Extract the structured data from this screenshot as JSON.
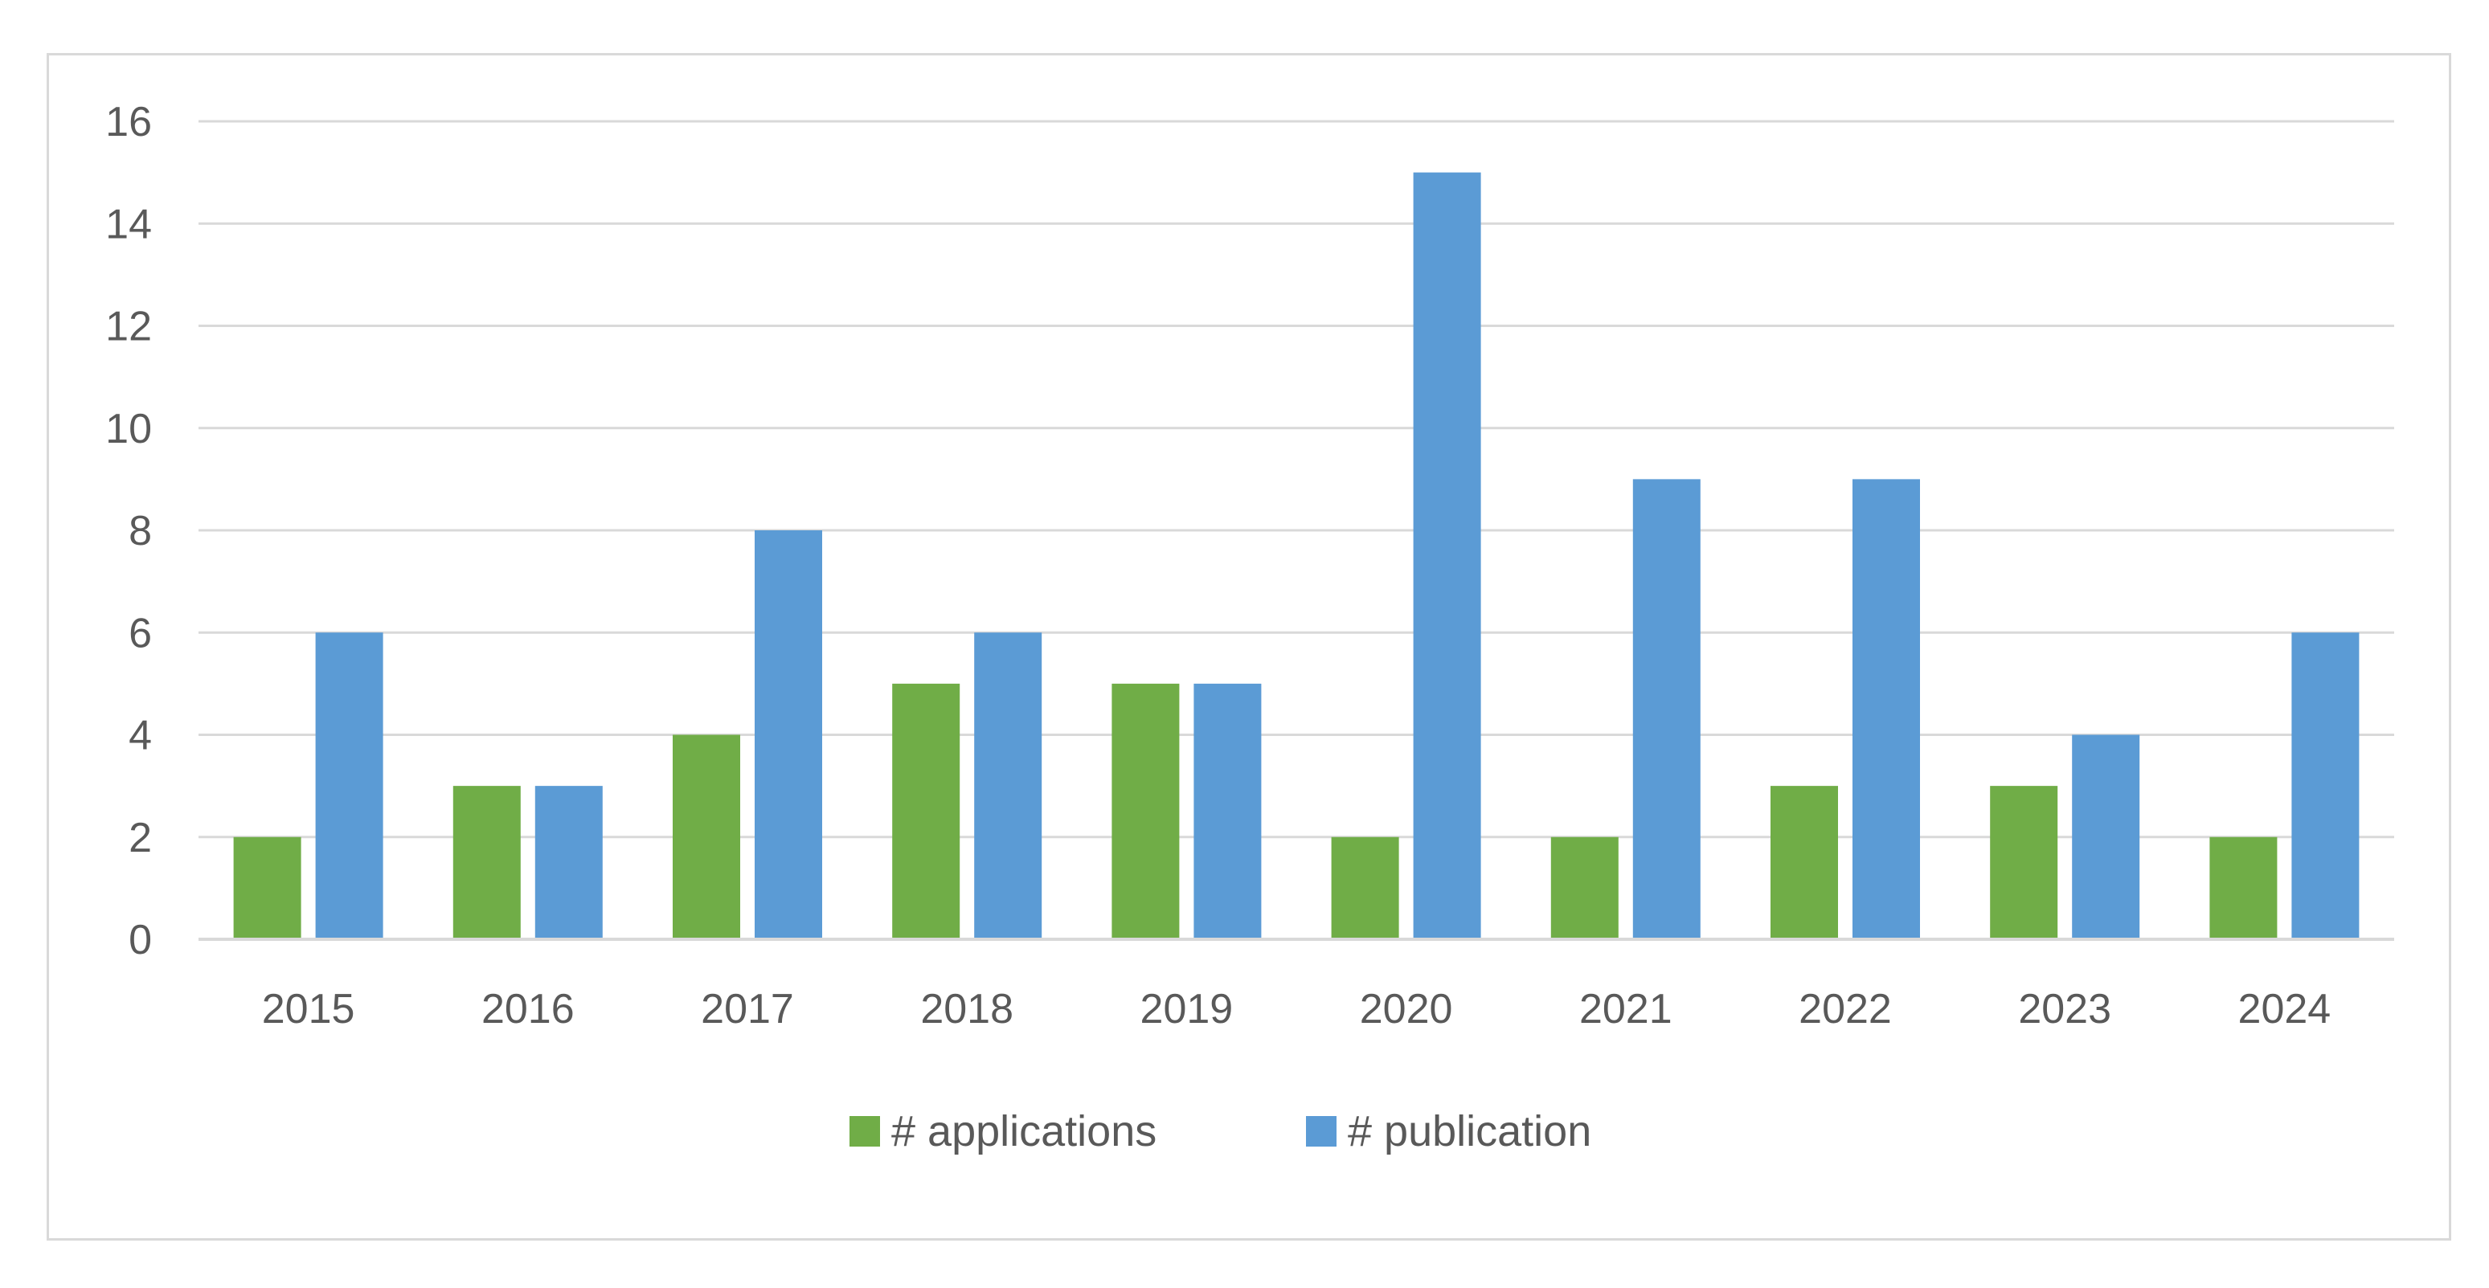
{
  "chart_data": {
    "type": "bar",
    "title": "",
    "xlabel": "",
    "ylabel": "",
    "categories": [
      "2015",
      "2016",
      "2017",
      "2018",
      "2019",
      "2020",
      "2021",
      "2022",
      "2023",
      "2024"
    ],
    "series": [
      {
        "name": "# applications",
        "color": "#70ad47",
        "values": [
          2,
          3,
          4,
          5,
          5,
          2,
          2,
          3,
          3,
          2
        ]
      },
      {
        "name": "# publication",
        "color": "#5b9bd5",
        "values": [
          6,
          3,
          8,
          6,
          5,
          15,
          9,
          9,
          4,
          6
        ]
      }
    ],
    "ylim": [
      0,
      16
    ],
    "yticks": [
      "0",
      "2",
      "4",
      "6",
      "8",
      "10",
      "12",
      "14",
      "16"
    ],
    "grid": true,
    "legend": "bottom"
  },
  "colors": {
    "gridline": "#d9d9d9",
    "axis_text": "#595959",
    "frame": "#d9d9d9"
  }
}
